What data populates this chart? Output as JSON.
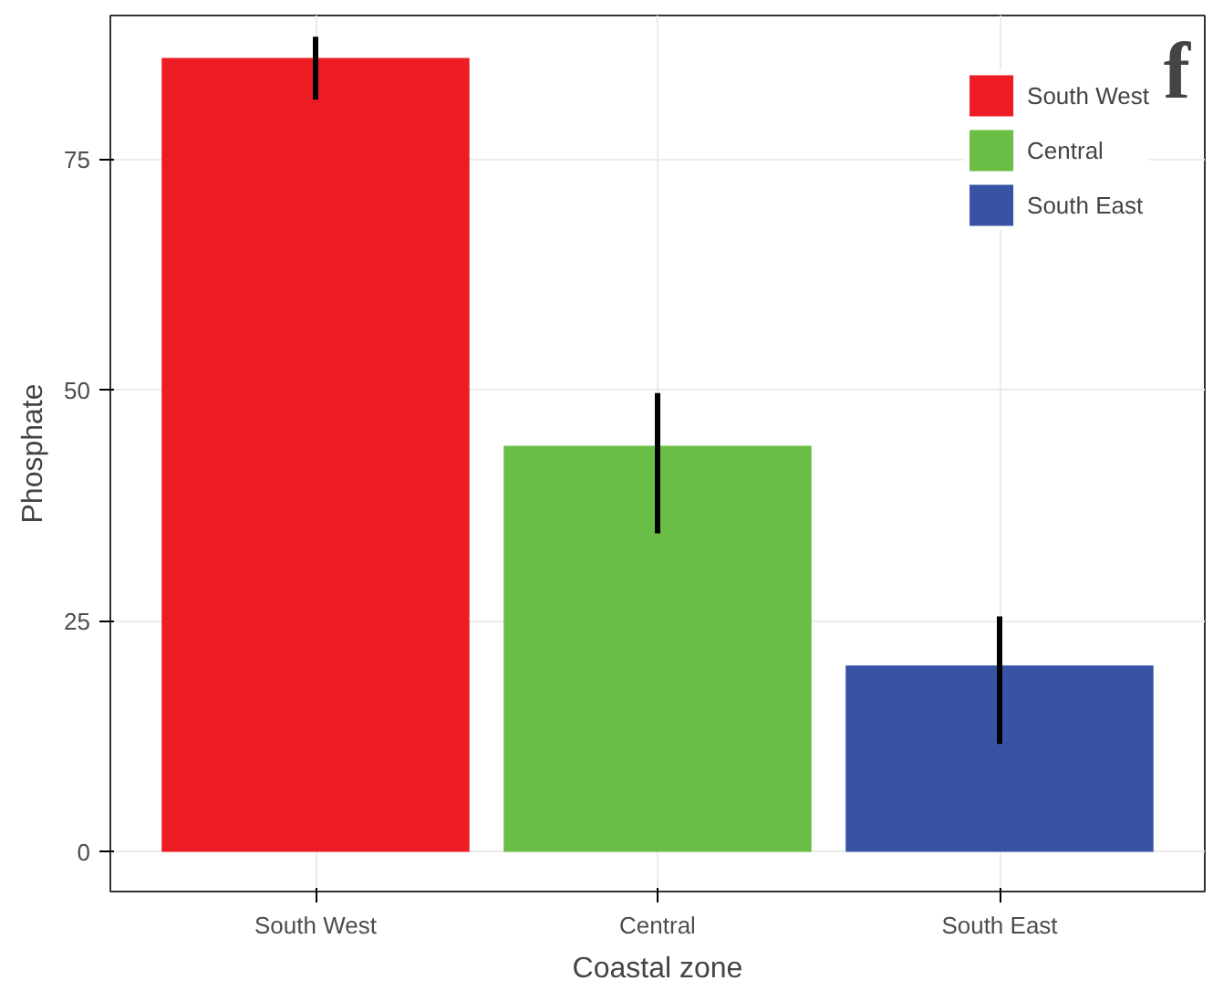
{
  "chart_data": {
    "type": "bar",
    "xlabel": "Coastal zone",
    "ylabel": "Phosphate",
    "categories": [
      "South West",
      "Central",
      "South East"
    ],
    "series": [
      {
        "name": "South West",
        "color": "#ed1c24",
        "values": [
          86,
          null,
          null
        ],
        "errors": [
          [
            81.5,
            88.3
          ],
          null,
          null
        ]
      },
      {
        "name": "Central",
        "color": "#6abd45",
        "values": [
          null,
          44,
          null
        ],
        "errors": [
          null,
          [
            34.5,
            49.7
          ],
          null
        ]
      },
      {
        "name": "South East",
        "color": "#3953a4",
        "values": [
          null,
          null,
          20.2
        ],
        "errors": [
          null,
          null,
          [
            11.7,
            25.5
          ]
        ]
      }
    ],
    "ylim": [
      -4.3,
      90.6
    ],
    "yticks": [
      0,
      25,
      50,
      75
    ],
    "grid": true,
    "legend": "top right",
    "annotations": [
      "f"
    ]
  }
}
